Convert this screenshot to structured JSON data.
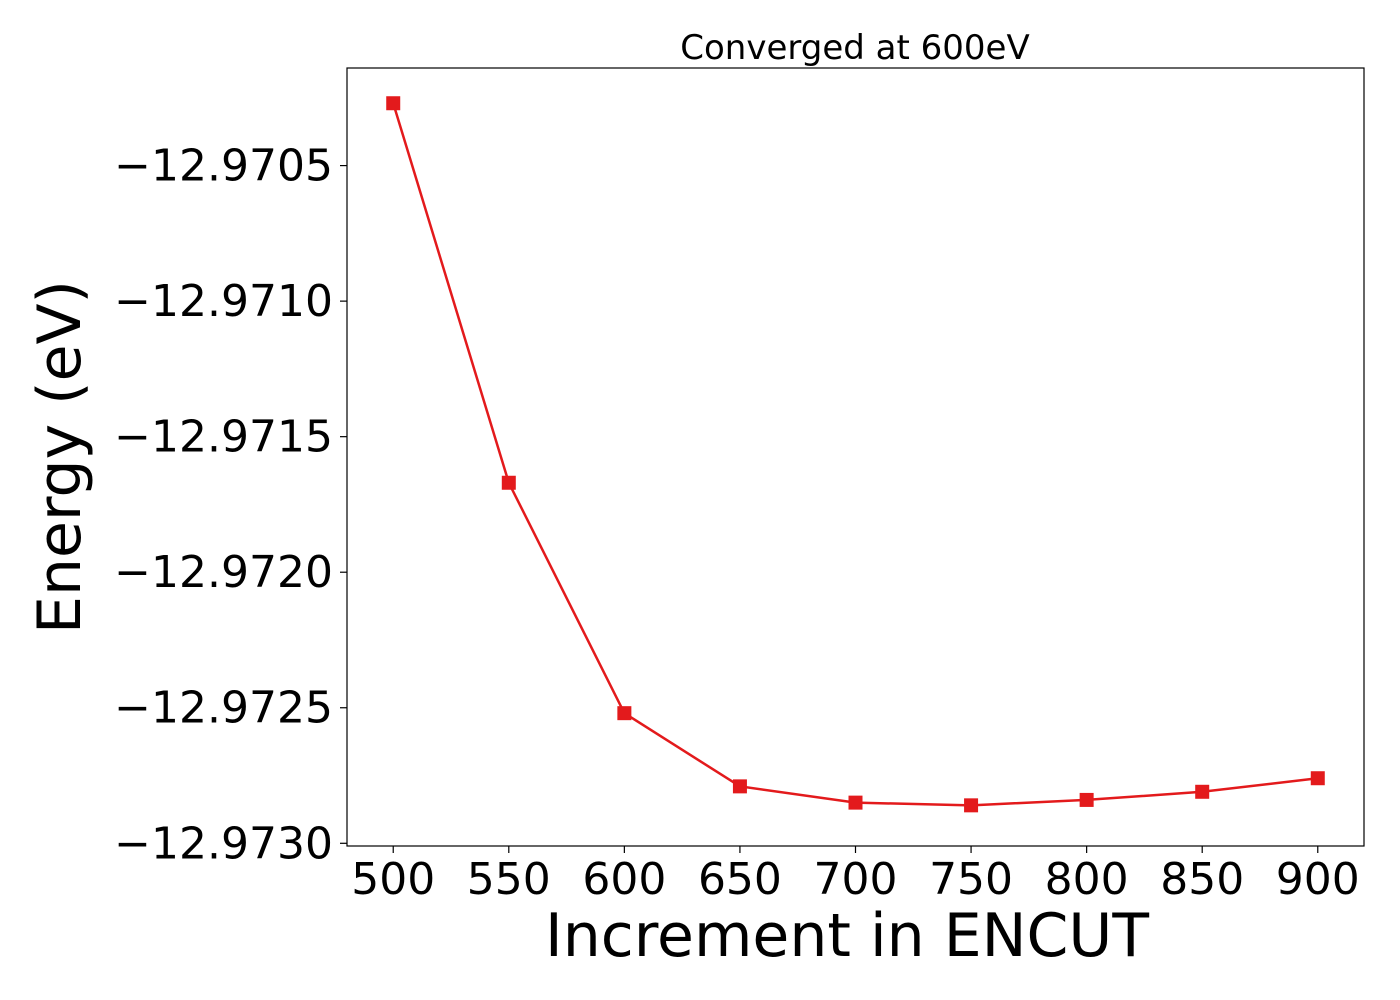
{
  "chart_data": {
    "type": "line",
    "title": "Converged at 600eV",
    "xlabel": "Increment in ENCUT",
    "ylabel": "Energy (eV)",
    "x": [
      500,
      550,
      600,
      650,
      700,
      750,
      800,
      850,
      900
    ],
    "series": [
      {
        "values": [
          -12.97027,
          -12.97167,
          -12.97252,
          -12.97279,
          -12.97285,
          -12.97286,
          -12.97284,
          -12.97281,
          -12.97276
        ],
        "color": "#e31a1c",
        "marker": "square"
      }
    ],
    "xticks": [
      500,
      550,
      600,
      650,
      700,
      750,
      800,
      850,
      900
    ],
    "xtick_labels": [
      "500",
      "550",
      "600",
      "650",
      "700",
      "750",
      "800",
      "850",
      "900"
    ],
    "yticks": [
      -12.9705,
      -12.971,
      -12.9715,
      -12.972,
      -12.9725,
      -12.973
    ],
    "ytick_labels": [
      "−12.9705",
      "−12.9710",
      "−12.9715",
      "−12.9720",
      "−12.9725",
      "−12.9730"
    ],
    "xlim": [
      480,
      920
    ],
    "ylim": [
      -12.97301,
      -12.97014
    ],
    "grid": false,
    "legend": "none"
  }
}
